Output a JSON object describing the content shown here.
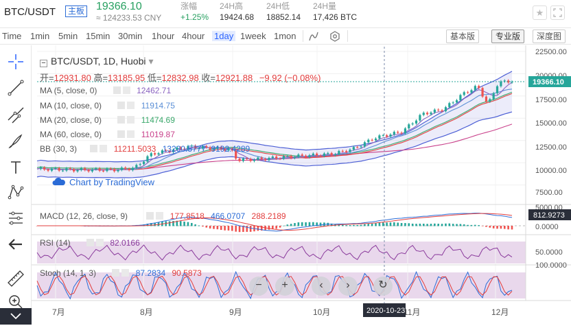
{
  "ticker": {
    "pair": "BTC/USDT",
    "badge": "主板",
    "last_price": "19366.10",
    "approx_cny": "≈ 124233.53 CNY",
    "stats": [
      {
        "label": "涨幅",
        "value": "+1.25%",
        "up": true
      },
      {
        "label": "24H高",
        "value": "19424.68"
      },
      {
        "label": "24H低",
        "value": "18852.14"
      },
      {
        "label": "24H量",
        "value": "17,426 BTC"
      }
    ],
    "star_icon": "star-icon",
    "fullscreen_icon": "fullscreen-icon"
  },
  "toolbar": {
    "timeframes": [
      "Time",
      "1min",
      "5min",
      "15min",
      "30min",
      "1hour",
      "4hour",
      "1day",
      "1week",
      "1mon"
    ],
    "active_timeframe": "1day",
    "views": [
      "基本版",
      "专业版",
      "深度图"
    ],
    "active_view": "专业版",
    "icons": [
      "indicators-icon",
      "settings-icon"
    ]
  },
  "sidebar": {
    "tools": [
      "crosshair-icon",
      "trend-line-icon",
      "fib-icon",
      "brush-icon",
      "text-icon",
      "pattern-icon",
      "measure-icon",
      "back-arrow-icon",
      "ruler-icon",
      "zoom-in-icon"
    ],
    "collapse_icon": "chevron-down-icon"
  },
  "chart": {
    "title": "BTC/USDT, 1D, Huobi",
    "ohlc": {
      "open_label": "开=",
      "open": "12931.80",
      "high_label": "高=",
      "high": "13185.95",
      "low_label": "低=",
      "low": "12832.98",
      "close_label": "收=",
      "close": "12921.88",
      "change": "−9.92 (−0.08%)"
    },
    "indicators": [
      {
        "name": "MA (5, close, 0)",
        "values": [
          "12462.71"
        ],
        "colors": [
          "#8a63c0"
        ]
      },
      {
        "name": "MA (10, close, 0)",
        "values": [
          "11914.75"
        ],
        "colors": [
          "#5b8fd6"
        ]
      },
      {
        "name": "MA (20, close, 0)",
        "values": [
          "11474.69"
        ],
        "colors": [
          "#3aa86b"
        ]
      },
      {
        "name": "MA (60, close, 0)",
        "values": [
          "11019.87"
        ],
        "colors": [
          "#c9418b"
        ]
      },
      {
        "name": "BB (30, 3)",
        "values": [
          "11211.5033",
          "13230.5777",
          "9192.4289"
        ],
        "colors": [
          "#e23c3c",
          "#2a6bd6",
          "#2a6bd6"
        ]
      }
    ],
    "watermark": "Chart by TradingView",
    "macd": {
      "name": "MACD (12, 26, close, 9)",
      "values": [
        "177.8518",
        "466.0707",
        "288.2189"
      ],
      "colors": [
        "#e23c3c",
        "#2a6bd6",
        "#e23c3c"
      ]
    },
    "rsi": {
      "name": "RSI (14)",
      "value": "82.0166"
    },
    "stoch": {
      "name": "Stoch (14, 1, 3)",
      "values": [
        "87.2834",
        "90.5873"
      ],
      "colors": [
        "#2a6bd6",
        "#e23c3c"
      ]
    },
    "price_axis": [
      "22500.00",
      "20000.00",
      "17500.00",
      "15000.00",
      "12500.00",
      "10000.00",
      "7500.00",
      "5000.00"
    ],
    "last_price_label": "19366.10",
    "macd_axis": [
      "812.9273",
      "0.0000"
    ],
    "rsi_axis": [
      "50.0000"
    ],
    "stoch_axis": [
      "100.0000"
    ],
    "time_axis": [
      "7月",
      "8月",
      "9月",
      "10月",
      "11月",
      "12月"
    ],
    "crosshair_date": "2020-10-23",
    "nav_buttons": [
      "zoom-out-icon",
      "zoom-in-icon",
      "scroll-left-icon",
      "scroll-right-icon",
      "reset-icon"
    ]
  }
}
